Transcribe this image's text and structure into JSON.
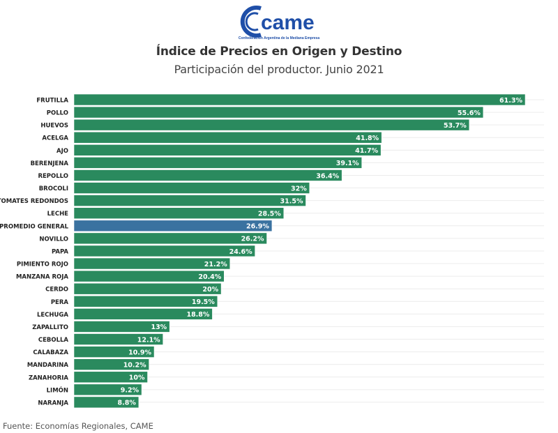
{
  "header": {
    "logo_text": "came",
    "logo_subtitle": "Confederación Argentina de la Mediana Empresa",
    "title": "Índice de Precios en Origen y Destino",
    "subtitle": "Participación del productor. Junio 2021"
  },
  "footer": {
    "source": "Fuente: Economías Regionales, CAME"
  },
  "colors": {
    "bar": "#2a8a5e",
    "highlight_bar": "#3a72a0",
    "logo": "#1f4fa8",
    "gridline": "#ececec"
  },
  "chart_data": {
    "type": "bar",
    "orientation": "horizontal",
    "title": "Índice de Precios en Origen y Destino",
    "subtitle": "Participación del productor. Junio 2021",
    "xlabel": "",
    "ylabel": "",
    "xlim": [
      0,
      65
    ],
    "grid": true,
    "highlight": "PROMEDIO GENERAL",
    "categories": [
      "FRUTILLA",
      "POLLO",
      "HUEVOS",
      "ACELGA",
      "AJO",
      "BERENJENA",
      "REPOLLO",
      "BROCOLI",
      "TOMATES REDONDOS",
      "LECHE",
      "PROMEDIO GENERAL",
      "NOVILLO",
      "PAPA",
      "PIMIENTO ROJO",
      "MANZANA ROJA",
      "CERDO",
      "PERA",
      "LECHUGA",
      "ZAPALLITO",
      "CEBOLLA",
      "CALABAZA",
      "MANDARINA",
      "ZANAHORIA",
      "LIMÓN",
      "NARANJA"
    ],
    "values": [
      61.3,
      55.6,
      53.7,
      41.8,
      41.7,
      39.1,
      36.4,
      32,
      31.5,
      28.5,
      26.9,
      26.2,
      24.6,
      21.2,
      20.4,
      20,
      19.5,
      18.8,
      13,
      12.1,
      10.9,
      10.2,
      10,
      9.2,
      8.8
    ],
    "labels": [
      "61.3%",
      "55.6%",
      "53.7%",
      "41.8%",
      "41.7%",
      "39.1%",
      "36.4%",
      "32%",
      "31.5%",
      "28.5%",
      "26.9%",
      "26.2%",
      "24.6%",
      "21.2%",
      "20.4%",
      "20%",
      "19.5%",
      "18.8%",
      "13%",
      "12.1%",
      "10.9%",
      "10.2%",
      "10%",
      "9.2%",
      "8.8%"
    ]
  }
}
